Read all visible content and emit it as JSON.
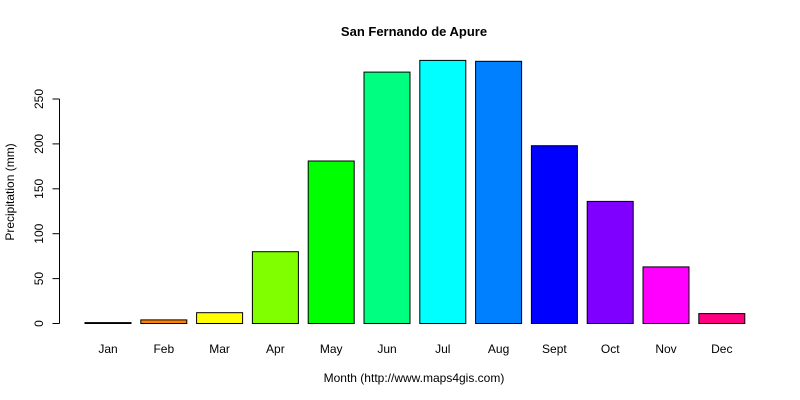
{
  "chart_data": {
    "type": "bar",
    "title": "San Fernando de Apure",
    "xlabel": "Month (http://www.maps4gis.com)",
    "ylabel": "Precipitation (mm)",
    "categories": [
      "Jan",
      "Feb",
      "Mar",
      "Apr",
      "May",
      "Jun",
      "Jul",
      "Aug",
      "Sept",
      "Oct",
      "Nov",
      "Dec"
    ],
    "values": [
      1,
      4,
      12,
      80,
      181,
      280,
      293,
      292,
      198,
      136,
      63,
      11
    ],
    "colors": [
      "#000000",
      "#FF8000",
      "#FFFF00",
      "#80FF00",
      "#00FF00",
      "#00FF80",
      "#00FFFF",
      "#0080FF",
      "#0000FF",
      "#8000FF",
      "#FF00FF",
      "#FF0080"
    ],
    "yticks": [
      0,
      50,
      100,
      150,
      200,
      250
    ],
    "ylim": [
      0,
      300
    ],
    "grid": false,
    "legend": "none"
  }
}
